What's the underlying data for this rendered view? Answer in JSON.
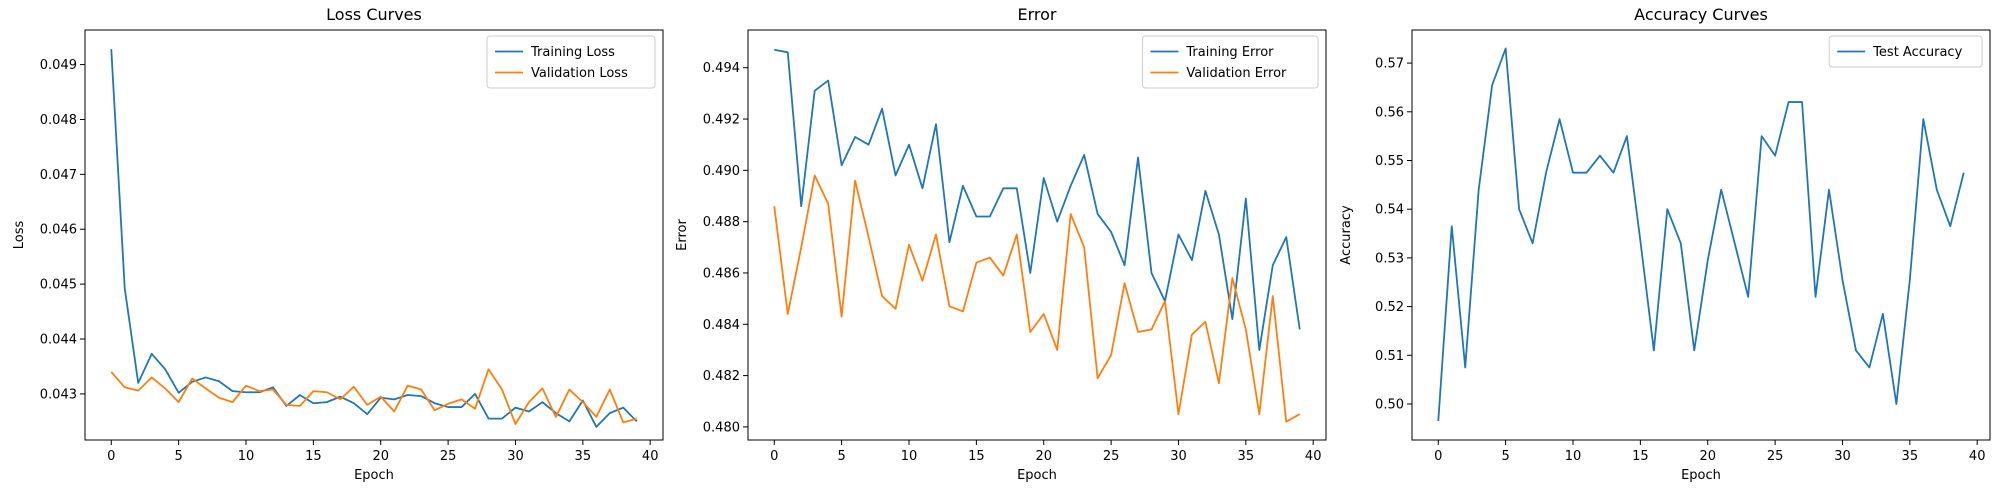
{
  "chart_data": [
    {
      "type": "line",
      "title": "Loss Curves",
      "xlabel": "Epoch",
      "ylabel": "Loss",
      "xlim": [
        -1.95,
        40.95
      ],
      "ylim": [
        0.04216,
        0.04963
      ],
      "xticks": [
        0,
        5,
        10,
        15,
        20,
        25,
        30,
        35,
        40
      ],
      "yticks": [
        0.043,
        0.044,
        0.045,
        0.046,
        0.047,
        0.048,
        0.049
      ],
      "tick_decimals": 3,
      "legend": "top-right",
      "grid": false,
      "x": [
        0,
        1,
        2,
        3,
        4,
        5,
        6,
        7,
        8,
        9,
        10,
        11,
        12,
        13,
        14,
        15,
        16,
        17,
        18,
        19,
        20,
        21,
        22,
        23,
        24,
        25,
        26,
        27,
        28,
        29,
        30,
        31,
        32,
        33,
        34,
        35,
        36,
        37,
        38,
        39
      ],
      "series": [
        {
          "name": "Training Loss",
          "color": "#1f77b4",
          "values": [
            0.04928,
            0.04492,
            0.0432,
            0.04373,
            0.04345,
            0.04302,
            0.04322,
            0.0433,
            0.04323,
            0.04305,
            0.04303,
            0.04303,
            0.04312,
            0.04278,
            0.04298,
            0.04283,
            0.04285,
            0.04295,
            0.04283,
            0.04263,
            0.04293,
            0.0429,
            0.04298,
            0.04296,
            0.04283,
            0.04276,
            0.04276,
            0.043,
            0.04255,
            0.04255,
            0.04275,
            0.04268,
            0.04285,
            0.04265,
            0.0425,
            0.04288,
            0.0424,
            0.04265,
            0.04275,
            0.0425
          ]
        },
        {
          "name": "Validation Loss",
          "color": "#ff7f0e",
          "values": [
            0.0434,
            0.04312,
            0.04306,
            0.0433,
            0.0431,
            0.04285,
            0.04328,
            0.0431,
            0.04293,
            0.04285,
            0.04315,
            0.04305,
            0.04308,
            0.0428,
            0.04278,
            0.04305,
            0.04303,
            0.0429,
            0.04313,
            0.0428,
            0.04295,
            0.04268,
            0.04315,
            0.04308,
            0.0427,
            0.04282,
            0.0429,
            0.04273,
            0.04345,
            0.04308,
            0.04245,
            0.04285,
            0.0431,
            0.04258,
            0.04308,
            0.04285,
            0.04258,
            0.04308,
            0.04248,
            0.04255
          ]
        }
      ]
    },
    {
      "type": "line",
      "title": "Error",
      "xlabel": "Epoch",
      "ylabel": "Error",
      "xlim": [
        -1.95,
        40.95
      ],
      "ylim": [
        0.47949,
        0.49547
      ],
      "xticks": [
        0,
        5,
        10,
        15,
        20,
        25,
        30,
        35,
        40
      ],
      "yticks": [
        0.48,
        0.482,
        0.484,
        0.486,
        0.488,
        0.49,
        0.492,
        0.494
      ],
      "tick_decimals": 3,
      "legend": "top-right",
      "grid": false,
      "x": [
        0,
        1,
        2,
        3,
        4,
        5,
        6,
        7,
        8,
        9,
        10,
        11,
        12,
        13,
        14,
        15,
        16,
        17,
        18,
        19,
        20,
        21,
        22,
        23,
        24,
        25,
        26,
        27,
        28,
        29,
        30,
        31,
        32,
        33,
        34,
        35,
        36,
        37,
        38,
        39
      ],
      "series": [
        {
          "name": "Training Error",
          "color": "#1f77b4",
          "values": [
            0.4947,
            0.4946,
            0.4886,
            0.4931,
            0.4935,
            0.4902,
            0.4913,
            0.491,
            0.4924,
            0.4898,
            0.491,
            0.4893,
            0.4918,
            0.4872,
            0.4894,
            0.4882,
            0.4882,
            0.4893,
            0.4893,
            0.486,
            0.4897,
            0.488,
            0.4894,
            0.4906,
            0.4883,
            0.4876,
            0.4863,
            0.4905,
            0.486,
            0.4849,
            0.4875,
            0.4865,
            0.4892,
            0.4875,
            0.4842,
            0.4889,
            0.483,
            0.4863,
            0.4874,
            0.4838
          ]
        },
        {
          "name": "Validation Error",
          "color": "#ff7f0e",
          "values": [
            0.4886,
            0.4844,
            0.487,
            0.4898,
            0.4887,
            0.4843,
            0.4896,
            0.4874,
            0.4851,
            0.4846,
            0.4871,
            0.4857,
            0.4875,
            0.4847,
            0.4845,
            0.4864,
            0.4866,
            0.4859,
            0.4875,
            0.4837,
            0.4844,
            0.483,
            0.4883,
            0.487,
            0.4819,
            0.4828,
            0.4856,
            0.4837,
            0.4838,
            0.4849,
            0.4805,
            0.4836,
            0.4841,
            0.4817,
            0.4858,
            0.4838,
            0.4805,
            0.4851,
            0.4802,
            0.4805
          ]
        }
      ]
    },
    {
      "type": "line",
      "title": "Accuracy Curves",
      "xlabel": "Epoch",
      "ylabel": "Accuracy",
      "xlim": [
        -1.95,
        40.95
      ],
      "ylim": [
        0.4926,
        0.5768
      ],
      "xticks": [
        0,
        5,
        10,
        15,
        20,
        25,
        30,
        35,
        40
      ],
      "yticks": [
        0.5,
        0.51,
        0.52,
        0.53,
        0.54,
        0.55,
        0.56,
        0.57
      ],
      "tick_decimals": 2,
      "legend": "top-right",
      "grid": false,
      "x": [
        0,
        1,
        2,
        3,
        4,
        5,
        6,
        7,
        8,
        9,
        10,
        11,
        12,
        13,
        14,
        15,
        16,
        17,
        18,
        19,
        20,
        21,
        22,
        23,
        24,
        25,
        26,
        27,
        28,
        29,
        30,
        31,
        32,
        33,
        34,
        35,
        36,
        37,
        38,
        39
      ],
      "series": [
        {
          "name": "Test Accuracy",
          "color": "#1f77b4",
          "values": [
            0.4965,
            0.5365,
            0.5075,
            0.544,
            0.5655,
            0.573,
            0.54,
            0.533,
            0.5475,
            0.5585,
            0.5475,
            0.5475,
            0.551,
            0.5475,
            0.555,
            0.5335,
            0.511,
            0.54,
            0.533,
            0.511,
            0.5295,
            0.544,
            0.533,
            0.522,
            0.555,
            0.551,
            0.562,
            0.562,
            0.522,
            0.544,
            0.5255,
            0.511,
            0.5075,
            0.5185,
            0.5,
            0.5255,
            0.5585,
            0.544,
            0.5365,
            0.5475
          ]
        }
      ]
    }
  ]
}
